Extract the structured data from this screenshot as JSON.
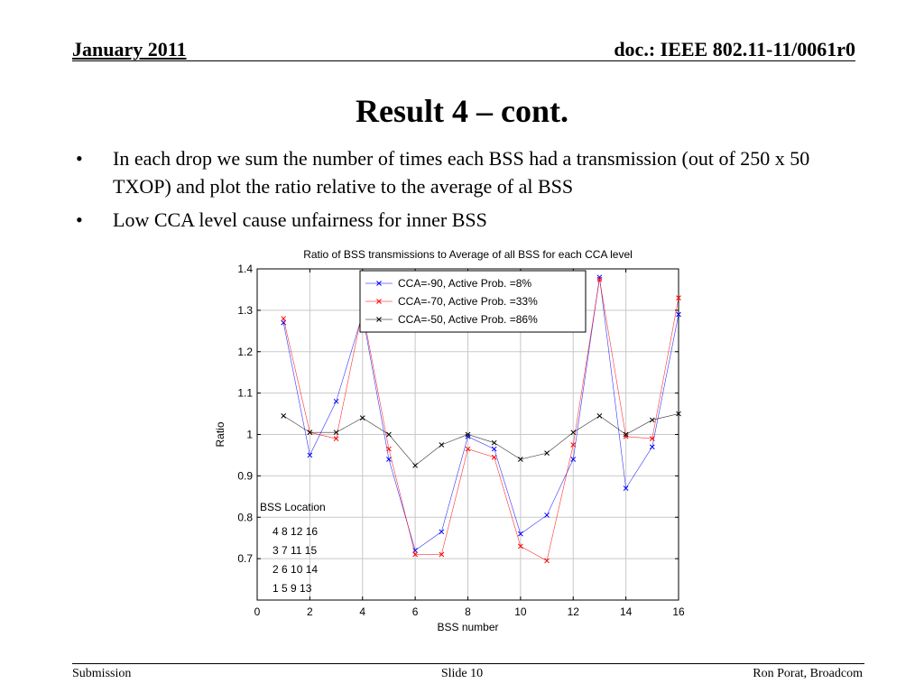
{
  "header": {
    "date": "January 2011",
    "doc_id": "doc.: IEEE 802.11-11/0061r0"
  },
  "slide_title": "Result 4 – cont.",
  "bullets": [
    "In each drop we sum the number of times each BSS had a transmission (out of 250 x 50 TXOP) and plot the ratio relative to the average of al BSS",
    "Low CCA level cause unfairness for inner BSS"
  ],
  "bullet_symbol": "•",
  "footer": {
    "left": "Submission",
    "center": "Slide 10",
    "right": "Ron Porat, Broadcom"
  },
  "chart_data": {
    "type": "line",
    "title": "Ratio of BSS transmissions to Average of all BSS for each CCA level",
    "xlabel": "BSS number",
    "ylabel": "Ratio",
    "xlim": [
      0,
      16
    ],
    "ylim": [
      0.6,
      1.4
    ],
    "xticks": [
      0,
      2,
      4,
      6,
      8,
      10,
      12,
      14,
      16
    ],
    "yticks": [
      0.7,
      0.8,
      0.9,
      1,
      1.1,
      1.2,
      1.3,
      1.4
    ],
    "ytick_labels": [
      "0.7",
      "0.8",
      "0.9",
      "1",
      "1.1",
      "1.2",
      "1.3",
      "1.4"
    ],
    "grid": true,
    "legend_position": "top-right",
    "x": [
      1,
      2,
      3,
      4,
      5,
      6,
      7,
      8,
      9,
      10,
      11,
      12,
      13,
      14,
      15,
      16
    ],
    "series": [
      {
        "name": "CCA=-90, Active Prob. =8%",
        "color": "#0000ff",
        "values": [
          1.27,
          0.95,
          1.08,
          1.29,
          0.94,
          0.72,
          0.765,
          0.995,
          0.965,
          0.76,
          0.805,
          0.94,
          1.38,
          0.87,
          0.97,
          1.29
        ]
      },
      {
        "name": "CCA=-70, Active Prob. =33%",
        "color": "#ff0000",
        "values": [
          1.28,
          1.005,
          0.99,
          1.3,
          0.965,
          0.71,
          0.71,
          0.965,
          0.945,
          0.73,
          0.695,
          0.975,
          1.375,
          0.995,
          0.99,
          1.33
        ]
      },
      {
        "name": "CCA=-50, Active Prob. =86%",
        "color": "#000000",
        "values": [
          1.045,
          1.005,
          1.005,
          1.04,
          1.0,
          0.925,
          0.975,
          1.0,
          0.98,
          0.94,
          0.955,
          1.005,
          1.045,
          1.0,
          1.035,
          1.05
        ]
      }
    ],
    "annotation": {
      "title": "BSS Location",
      "rows": [
        "4  8  12  16",
        "3  7  11  15",
        "2  6  10  14",
        "1  5   9  13"
      ]
    }
  }
}
